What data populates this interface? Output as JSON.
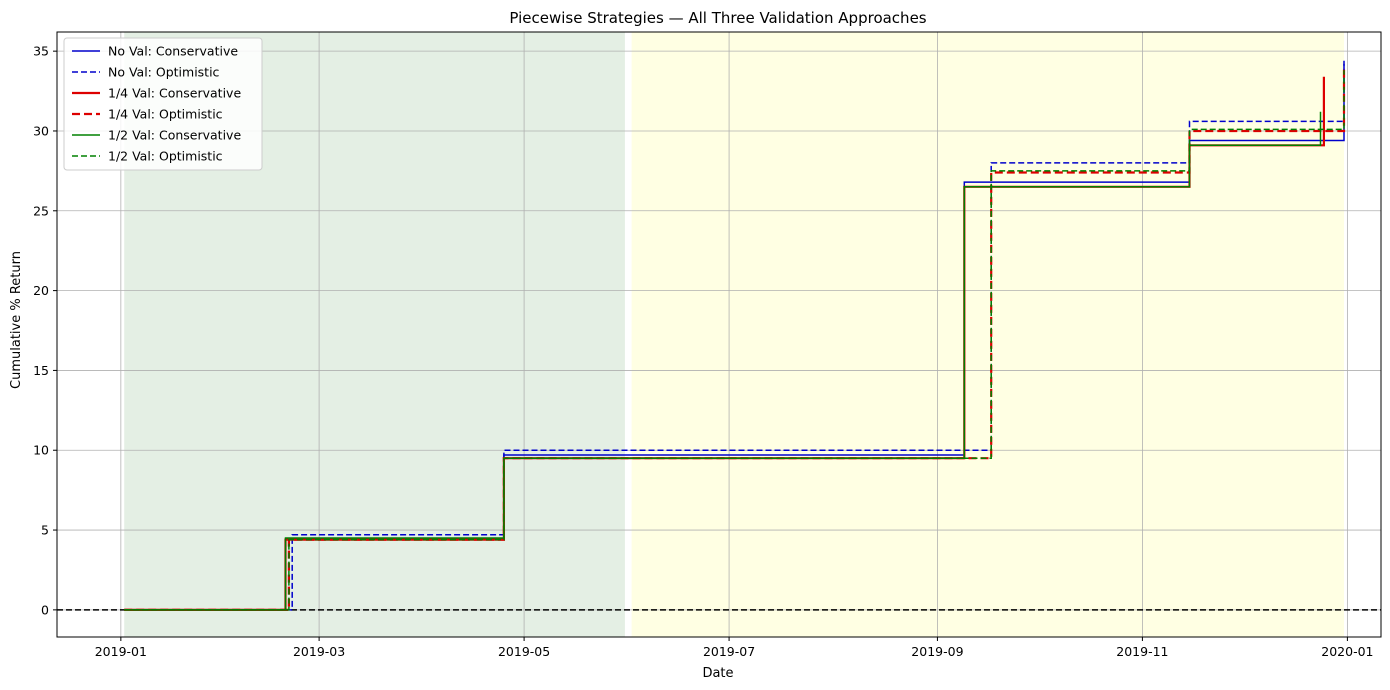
{
  "chart_data": {
    "type": "line",
    "title": "Piecewise Strategies — All Three Validation Approaches",
    "xlabel": "Date",
    "ylabel": "Cumulative % Return",
    "xlim": [
      "2018-12-13",
      "2020-01-11"
    ],
    "ylim": [
      -1.7,
      36.2
    ],
    "x_ticks": [
      "2019-01",
      "2019-03",
      "2019-05",
      "2019-07",
      "2019-09",
      "2019-11",
      "2020-01"
    ],
    "y_ticks": [
      0,
      5,
      10,
      15,
      20,
      25,
      30,
      35
    ],
    "grid": true,
    "legend_position": "upper left",
    "shaded_regions": [
      {
        "start": "2019-01-02",
        "end": "2019-05-31",
        "color": "#e4efe4"
      },
      {
        "start": "2019-06-02",
        "end": "2019-12-31",
        "color": "#ffffe3"
      }
    ],
    "reference_line": {
      "y": 0,
      "color": "#000000",
      "style": "dashed"
    },
    "series": [
      {
        "name": "No Val: Conservative",
        "color": "#0000cc",
        "style": "solid",
        "width": 1.5,
        "x": [
          "2019-01-02",
          "2019-02-19",
          "2019-02-19",
          "2019-04-25",
          "2019-04-25",
          "2019-09-09",
          "2019-09-09",
          "2019-11-15",
          "2019-11-15",
          "2019-12-31",
          "2019-12-31"
        ],
        "y": [
          0,
          0,
          4.4,
          4.4,
          9.7,
          9.7,
          26.8,
          26.8,
          29.4,
          29.4,
          34.4
        ]
      },
      {
        "name": "No Val: Optimistic",
        "color": "#0000cc",
        "style": "dashed",
        "width": 1.5,
        "x": [
          "2019-01-02",
          "2019-02-21",
          "2019-02-21",
          "2019-04-25",
          "2019-04-25",
          "2019-09-17",
          "2019-09-17",
          "2019-11-15",
          "2019-11-15",
          "2019-12-31",
          "2019-12-31"
        ],
        "y": [
          0,
          0,
          4.7,
          4.7,
          10.0,
          10.0,
          28.0,
          28.0,
          30.6,
          30.6,
          34.2
        ]
      },
      {
        "name": "1/4 Val: Conservative",
        "color": "#dd0000",
        "style": "solid",
        "width": 2.2,
        "x": [
          "2019-01-02",
          "2019-02-19",
          "2019-02-19",
          "2019-04-25",
          "2019-04-25",
          "2019-09-09",
          "2019-09-09",
          "2019-11-15",
          "2019-11-15",
          "2019-12-25",
          "2019-12-25"
        ],
        "y": [
          0,
          0,
          4.4,
          4.4,
          9.5,
          9.5,
          26.5,
          26.5,
          29.1,
          29.1,
          33.4
        ]
      },
      {
        "name": "1/4 Val: Optimistic",
        "color": "#dd0000",
        "style": "dashed",
        "width": 2.2,
        "x": [
          "2019-01-02",
          "2019-02-20",
          "2019-02-20",
          "2019-04-25",
          "2019-04-25",
          "2019-09-17",
          "2019-09-17",
          "2019-11-15",
          "2019-11-15",
          "2019-12-31",
          "2019-12-31"
        ],
        "y": [
          0,
          0,
          4.4,
          4.4,
          9.5,
          9.5,
          27.4,
          27.4,
          30.0,
          30.0,
          34.0
        ]
      },
      {
        "name": "1/2 Val: Conservative",
        "color": "#008000",
        "style": "solid",
        "width": 1.5,
        "x": [
          "2019-01-02",
          "2019-02-19",
          "2019-02-19",
          "2019-04-25",
          "2019-04-25",
          "2019-09-09",
          "2019-09-09",
          "2019-11-15",
          "2019-11-15",
          "2019-12-24",
          "2019-12-24"
        ],
        "y": [
          0,
          0,
          4.5,
          4.5,
          9.5,
          9.5,
          26.5,
          26.5,
          29.1,
          29.1,
          31.2
        ]
      },
      {
        "name": "1/2 Val: Optimistic",
        "color": "#008000",
        "style": "dashed",
        "width": 1.5,
        "x": [
          "2019-01-02",
          "2019-02-20",
          "2019-02-20",
          "2019-04-25",
          "2019-04-25",
          "2019-09-17",
          "2019-09-17",
          "2019-11-15",
          "2019-11-15",
          "2019-12-31",
          "2019-12-31"
        ],
        "y": [
          0,
          0,
          4.4,
          4.4,
          9.5,
          9.5,
          27.5,
          27.5,
          30.1,
          30.1,
          33.8
        ]
      }
    ]
  }
}
